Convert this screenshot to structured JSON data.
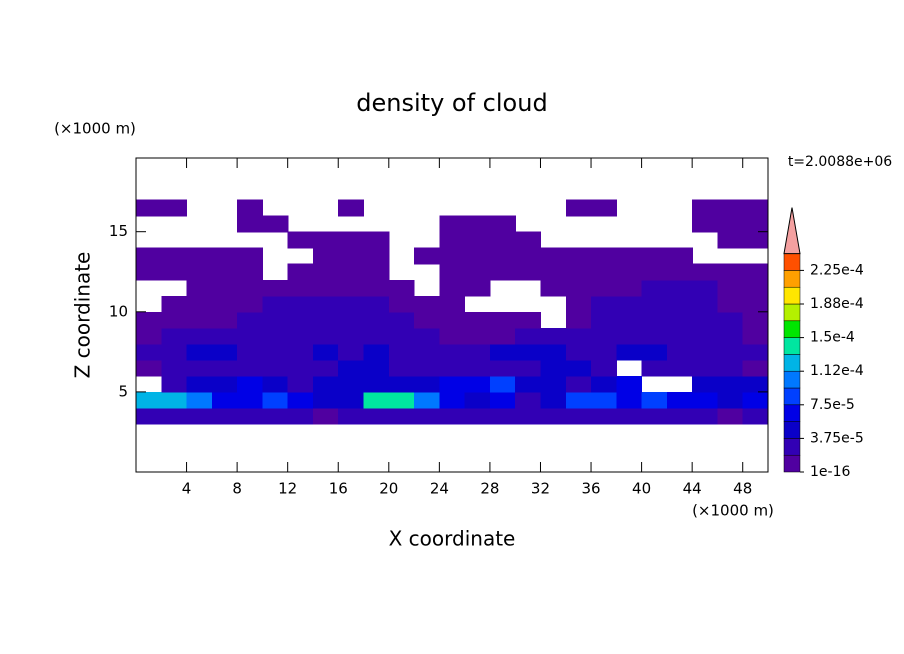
{
  "chart_data": {
    "type": "contour",
    "title": "density of cloud",
    "xlabel": "X coordinate",
    "ylabel": "Z coordinate",
    "xunit": "(×1000 m)",
    "yunit": "(×1000 m)",
    "time_label": "t=2.0088e+06",
    "xlim": [
      0,
      50
    ],
    "ylim": [
      0,
      19.6
    ],
    "xticks": [
      4,
      8,
      12,
      16,
      20,
      24,
      28,
      32,
      36,
      40,
      44,
      48
    ],
    "yticks": [
      5,
      10,
      15
    ],
    "x": [
      1,
      3,
      5,
      7,
      9,
      11,
      13,
      15,
      17,
      19,
      21,
      23,
      25,
      27,
      29,
      31,
      33,
      35,
      37,
      39,
      41,
      43,
      45,
      47,
      49
    ],
    "y": [
      3.5,
      4.5,
      5.5,
      6.5,
      7.5,
      8.5,
      9.5,
      10.5,
      11.5,
      12.5,
      13.5,
      14.5,
      15.5,
      16.5
    ],
    "z": [
      [
        2.8e-05,
        2.8e-05,
        2.8e-05,
        2.8e-05,
        2.8e-05,
        2.8e-05,
        2.8e-05,
        1e-05,
        2.8e-05,
        2.8e-05,
        2.8e-05,
        2.8e-05,
        2.8e-05,
        2.8e-05,
        2.8e-05,
        2.8e-05,
        2.8e-05,
        2.8e-05,
        2.8e-05,
        2.8e-05,
        2.8e-05,
        2.8e-05,
        2.8e-05,
        1e-05,
        2.8e-05
      ],
      [
        0.000122,
        0.000122,
        0.000103,
        6.5e-05,
        6.5e-05,
        8.4e-05,
        6.5e-05,
        4.6e-05,
        4.6e-05,
        0.00014,
        0.00014,
        0.000103,
        6.5e-05,
        4.6e-05,
        6.5e-05,
        2.8e-05,
        4.6e-05,
        8.4e-05,
        8.4e-05,
        6.5e-05,
        8.4e-05,
        6.5e-05,
        6.5e-05,
        4.6e-05,
        6.5e-05
      ],
      [
        null,
        2.8e-05,
        4.6e-05,
        4.6e-05,
        6.5e-05,
        4.6e-05,
        2.8e-05,
        4.6e-05,
        4.6e-05,
        4.6e-05,
        4.6e-05,
        4.6e-05,
        6.5e-05,
        6.5e-05,
        8.4e-05,
        4.6e-05,
        4.6e-05,
        2.8e-05,
        4.6e-05,
        6.5e-05,
        null,
        null,
        4.6e-05,
        4.6e-05,
        4.6e-05
      ],
      [
        1e-05,
        2.8e-05,
        2.8e-05,
        2.8e-05,
        2.8e-05,
        2.8e-05,
        2.8e-05,
        2.8e-05,
        4.6e-05,
        4.6e-05,
        2.8e-05,
        2.8e-05,
        2.8e-05,
        2.8e-05,
        2.8e-05,
        2.8e-05,
        4.6e-05,
        4.6e-05,
        2.8e-05,
        null,
        2.8e-05,
        2.8e-05,
        2.8e-05,
        2.8e-05,
        1e-05
      ],
      [
        2.8e-05,
        2.8e-05,
        4.6e-05,
        4.6e-05,
        2.8e-05,
        2.8e-05,
        2.8e-05,
        4.6e-05,
        2.8e-05,
        4.6e-05,
        2.8e-05,
        2.8e-05,
        2.8e-05,
        2.8e-05,
        4.6e-05,
        4.6e-05,
        4.6e-05,
        2.8e-05,
        2.8e-05,
        4.6e-05,
        4.6e-05,
        2.8e-05,
        2.8e-05,
        2.8e-05,
        2.8e-05
      ],
      [
        1e-05,
        2.8e-05,
        2.8e-05,
        2.8e-05,
        2.8e-05,
        2.8e-05,
        2.8e-05,
        2.8e-05,
        2.8e-05,
        2.8e-05,
        2.8e-05,
        2.8e-05,
        1e-05,
        1e-05,
        1e-05,
        2.8e-05,
        2.8e-05,
        2.8e-05,
        2.8e-05,
        2.8e-05,
        2.8e-05,
        2.8e-05,
        2.8e-05,
        2.8e-05,
        1e-05
      ],
      [
        1e-05,
        1e-05,
        1e-05,
        1e-05,
        2.8e-05,
        2.8e-05,
        2.8e-05,
        2.8e-05,
        2.8e-05,
        2.8e-05,
        2.8e-05,
        1e-05,
        1e-05,
        1e-05,
        1e-05,
        1e-05,
        null,
        1e-05,
        2.8e-05,
        2.8e-05,
        2.8e-05,
        2.8e-05,
        2.8e-05,
        2.8e-05,
        1e-05
      ],
      [
        null,
        1e-05,
        1e-05,
        1e-05,
        1e-05,
        2.8e-05,
        2.8e-05,
        2.8e-05,
        2.8e-05,
        2.8e-05,
        1e-05,
        1e-05,
        1e-05,
        null,
        null,
        null,
        null,
        1e-05,
        2.8e-05,
        2.8e-05,
        2.8e-05,
        2.8e-05,
        2.8e-05,
        1e-05,
        1e-05
      ],
      [
        null,
        null,
        1e-05,
        1e-05,
        1e-05,
        1e-05,
        1e-05,
        1e-05,
        1e-05,
        1e-05,
        1e-05,
        null,
        1e-05,
        1e-05,
        null,
        null,
        1e-05,
        1e-05,
        1e-05,
        1e-05,
        2.8e-05,
        2.8e-05,
        2.8e-05,
        1e-05,
        1e-05
      ],
      [
        1e-05,
        1e-05,
        1e-05,
        1e-05,
        1e-05,
        null,
        1e-05,
        1e-05,
        1e-05,
        1e-05,
        null,
        null,
        1e-05,
        1e-05,
        1e-05,
        1e-05,
        1e-05,
        1e-05,
        1e-05,
        1e-05,
        1e-05,
        1e-05,
        1e-05,
        1e-05,
        1e-05
      ],
      [
        1e-05,
        1e-05,
        1e-05,
        1e-05,
        1e-05,
        null,
        null,
        1e-05,
        1e-05,
        1e-05,
        null,
        1e-05,
        1e-05,
        1e-05,
        1e-05,
        1e-05,
        1e-05,
        1e-05,
        1e-05,
        1e-05,
        1e-05,
        1e-05,
        null,
        null,
        null
      ],
      [
        null,
        null,
        null,
        null,
        null,
        null,
        1e-05,
        1e-05,
        1e-05,
        1e-05,
        null,
        null,
        1e-05,
        1e-05,
        1e-05,
        1e-05,
        null,
        null,
        null,
        null,
        null,
        null,
        null,
        1e-05,
        1e-05
      ],
      [
        null,
        null,
        null,
        null,
        1e-05,
        1e-05,
        null,
        null,
        null,
        null,
        null,
        null,
        1e-05,
        1e-05,
        1e-05,
        null,
        null,
        null,
        null,
        null,
        null,
        null,
        1e-05,
        1e-05,
        1e-05
      ],
      [
        1e-05,
        1e-05,
        null,
        null,
        1e-05,
        null,
        null,
        null,
        1e-05,
        null,
        null,
        null,
        null,
        null,
        null,
        null,
        null,
        1e-05,
        1e-05,
        null,
        null,
        null,
        1e-05,
        1e-05,
        1e-05
      ]
    ],
    "levels": [
      1e-16,
      1.875e-05,
      3.75e-05,
      5.625e-05,
      7.5e-05,
      9.375e-05,
      0.0001125,
      0.00013125,
      0.00015,
      0.00016875,
      0.0001875,
      0.00020625,
      0.000225,
      0.00024375
    ],
    "colors": [
      "#5000a0",
      "#3200b4",
      "#0a00c8",
      "#0000e6",
      "#0040ff",
      "#0078ff",
      "#00b4e6",
      "#00e6a0",
      "#00e600",
      "#b4f000",
      "#ffe600",
      "#ffa000",
      "#ff5000"
    ],
    "extend_color": "#f4a0a0",
    "colorbar_ticks": [
      1e-16,
      {
        "value": 3.75e-05,
        "label": "3.75e-5"
      },
      {
        "value": 7.5e-05,
        "label": "7.5e-5"
      },
      {
        "value": 0.0001125,
        "label": "1.12e-4"
      },
      {
        "value": 0.00015,
        "label": "1.5e-4"
      },
      {
        "value": 0.0001875,
        "label": "1.88e-4"
      },
      {
        "value": 0.000225,
        "label": "2.25e-4"
      }
    ]
  }
}
